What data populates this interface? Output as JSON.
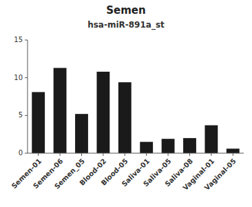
{
  "chart_data": {
    "type": "bar",
    "title": "Semen",
    "subtitle": "hsa-miR-891a_st",
    "categories": [
      "Semen-01",
      "Semen-06",
      "Semen_05",
      "Blood-02",
      "Blood-05",
      "Saliva-01",
      "Saliva-05",
      "Saliva-08",
      "Vaginal-01",
      "Vaginal-05"
    ],
    "values": [
      8.1,
      11.3,
      5.2,
      10.8,
      9.4,
      1.5,
      1.9,
      2.0,
      3.7,
      0.6
    ],
    "color": "#1a1a1a",
    "ylim": [
      0,
      15
    ],
    "yticks": [
      0,
      5,
      10,
      15
    ]
  }
}
